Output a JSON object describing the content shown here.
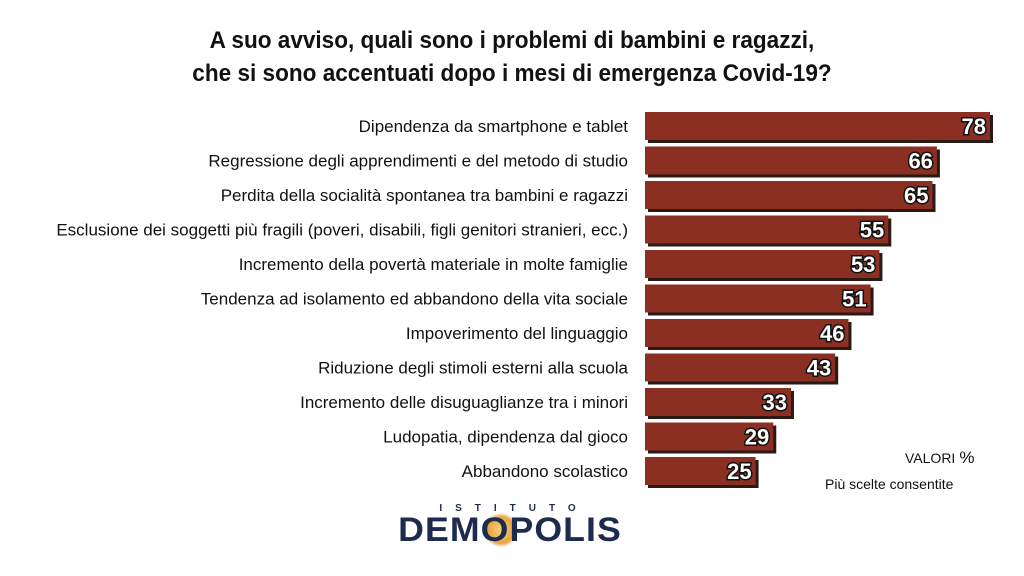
{
  "title_lines": [
    "A suo avviso, quali sono i problemi di bambini e ragazzi,",
    "che si sono accentuati dopo i mesi di emergenza Covid-19?"
  ],
  "notes": {
    "valori": "VALORI",
    "percent": "%",
    "scelte": "Più scelte consentite"
  },
  "logo": {
    "top": "ISTITUTO",
    "main": "DEMOPOLIS"
  },
  "colors": {
    "bar": "#8b2f22",
    "bar_shadow": "#2a1a16"
  },
  "chart_data": {
    "type": "bar",
    "orientation": "horizontal",
    "title": "A suo avviso, quali sono i problemi di bambini e ragazzi, che si sono accentuati dopo i mesi di emergenza Covid-19?",
    "categories": [
      "Dipendenza da smartphone e tablet",
      "Regressione degli apprendimenti e del metodo di studio",
      "Perdita della socialità spontanea tra bambini e ragazzi",
      "Esclusione dei soggetti più fragili (poveri, disabili, figli genitori stranieri, ecc.)",
      "Incremento della povertà materiale in molte famiglie",
      "Tendenza ad isolamento ed abbandono della vita sociale",
      "Impoverimento del linguaggio",
      "Riduzione degli stimoli esterni alla scuola",
      "Incremento delle disuguaglianze tra i minori",
      "Ludopatia, dipendenza dal gioco",
      "Abbandono scolastico"
    ],
    "values": [
      78,
      66,
      65,
      55,
      53,
      51,
      46,
      43,
      33,
      29,
      25
    ],
    "xlim": [
      0,
      78
    ],
    "grid": false,
    "legend": "none"
  }
}
